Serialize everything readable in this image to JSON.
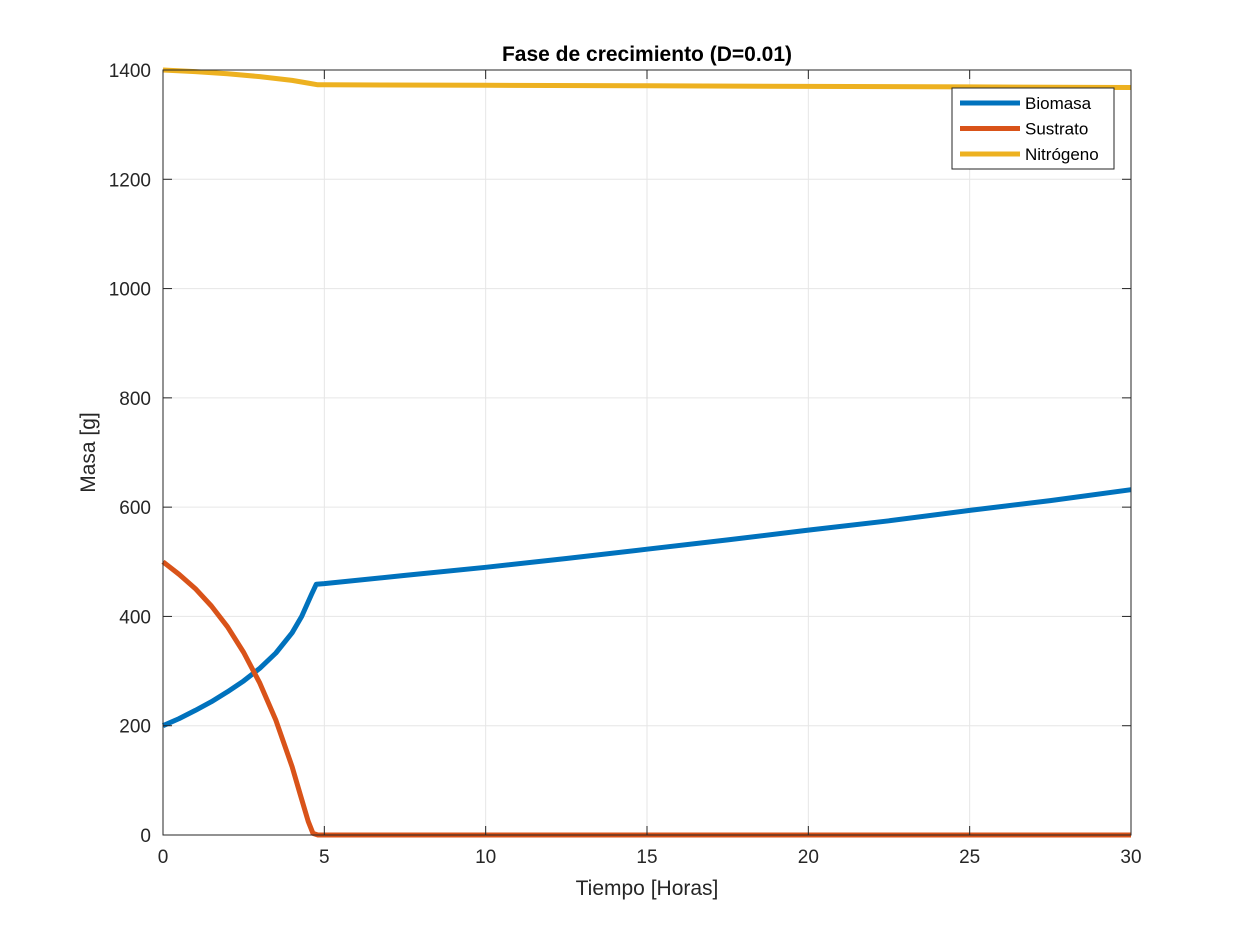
{
  "chart_data": {
    "type": "line",
    "title": "Fase de crecimiento (D=0.01)",
    "xlabel": "Tiempo [Horas]",
    "ylabel": "Masa [g]",
    "xlim": [
      0,
      30
    ],
    "ylim": [
      0,
      1400
    ],
    "xticks": [
      0,
      5,
      10,
      15,
      20,
      25,
      30
    ],
    "yticks": [
      0,
      200,
      400,
      600,
      800,
      1000,
      1200,
      1400
    ],
    "xtick_labels": [
      "0",
      "5",
      "10",
      "15",
      "20",
      "25",
      "30"
    ],
    "ytick_labels": [
      "0",
      "200",
      "400",
      "600",
      "800",
      "1000",
      "1200",
      "1400"
    ],
    "grid": true,
    "legend_position": "top-right",
    "series": [
      {
        "name": "Biomasa",
        "color": "#0072BD",
        "x": [
          0,
          0.5,
          1,
          1.5,
          2,
          2.5,
          3,
          3.5,
          4,
          4.3,
          4.6,
          4.75,
          5,
          7.5,
          10,
          12.5,
          15,
          17.5,
          20,
          22.5,
          25,
          27.5,
          30
        ],
        "y": [
          200,
          213,
          228,
          244,
          262,
          282,
          305,
          333,
          370,
          400,
          440,
          459,
          460,
          475,
          490,
          506,
          523,
          540,
          558,
          575,
          594,
          612,
          632
        ]
      },
      {
        "name": "Sustrato",
        "color": "#D95319",
        "x": [
          0,
          0.5,
          1,
          1.5,
          2,
          2.5,
          3,
          3.5,
          4,
          4.25,
          4.5,
          4.65,
          4.8,
          5,
          10,
          15,
          20,
          25,
          30
        ],
        "y": [
          500,
          477,
          451,
          419,
          381,
          334,
          278,
          210,
          125,
          75,
          25,
          3,
          0,
          0,
          0,
          0,
          0,
          0,
          0
        ]
      },
      {
        "name": "Nitrógeno",
        "color": "#EDB120",
        "x": [
          0,
          1,
          2,
          3,
          4,
          4.5,
          4.8,
          5,
          10,
          15,
          20,
          25,
          30
        ],
        "y": [
          1400,
          1397,
          1393,
          1388,
          1381,
          1376,
          1373,
          1373,
          1372,
          1371,
          1370,
          1369,
          1368
        ]
      }
    ]
  }
}
